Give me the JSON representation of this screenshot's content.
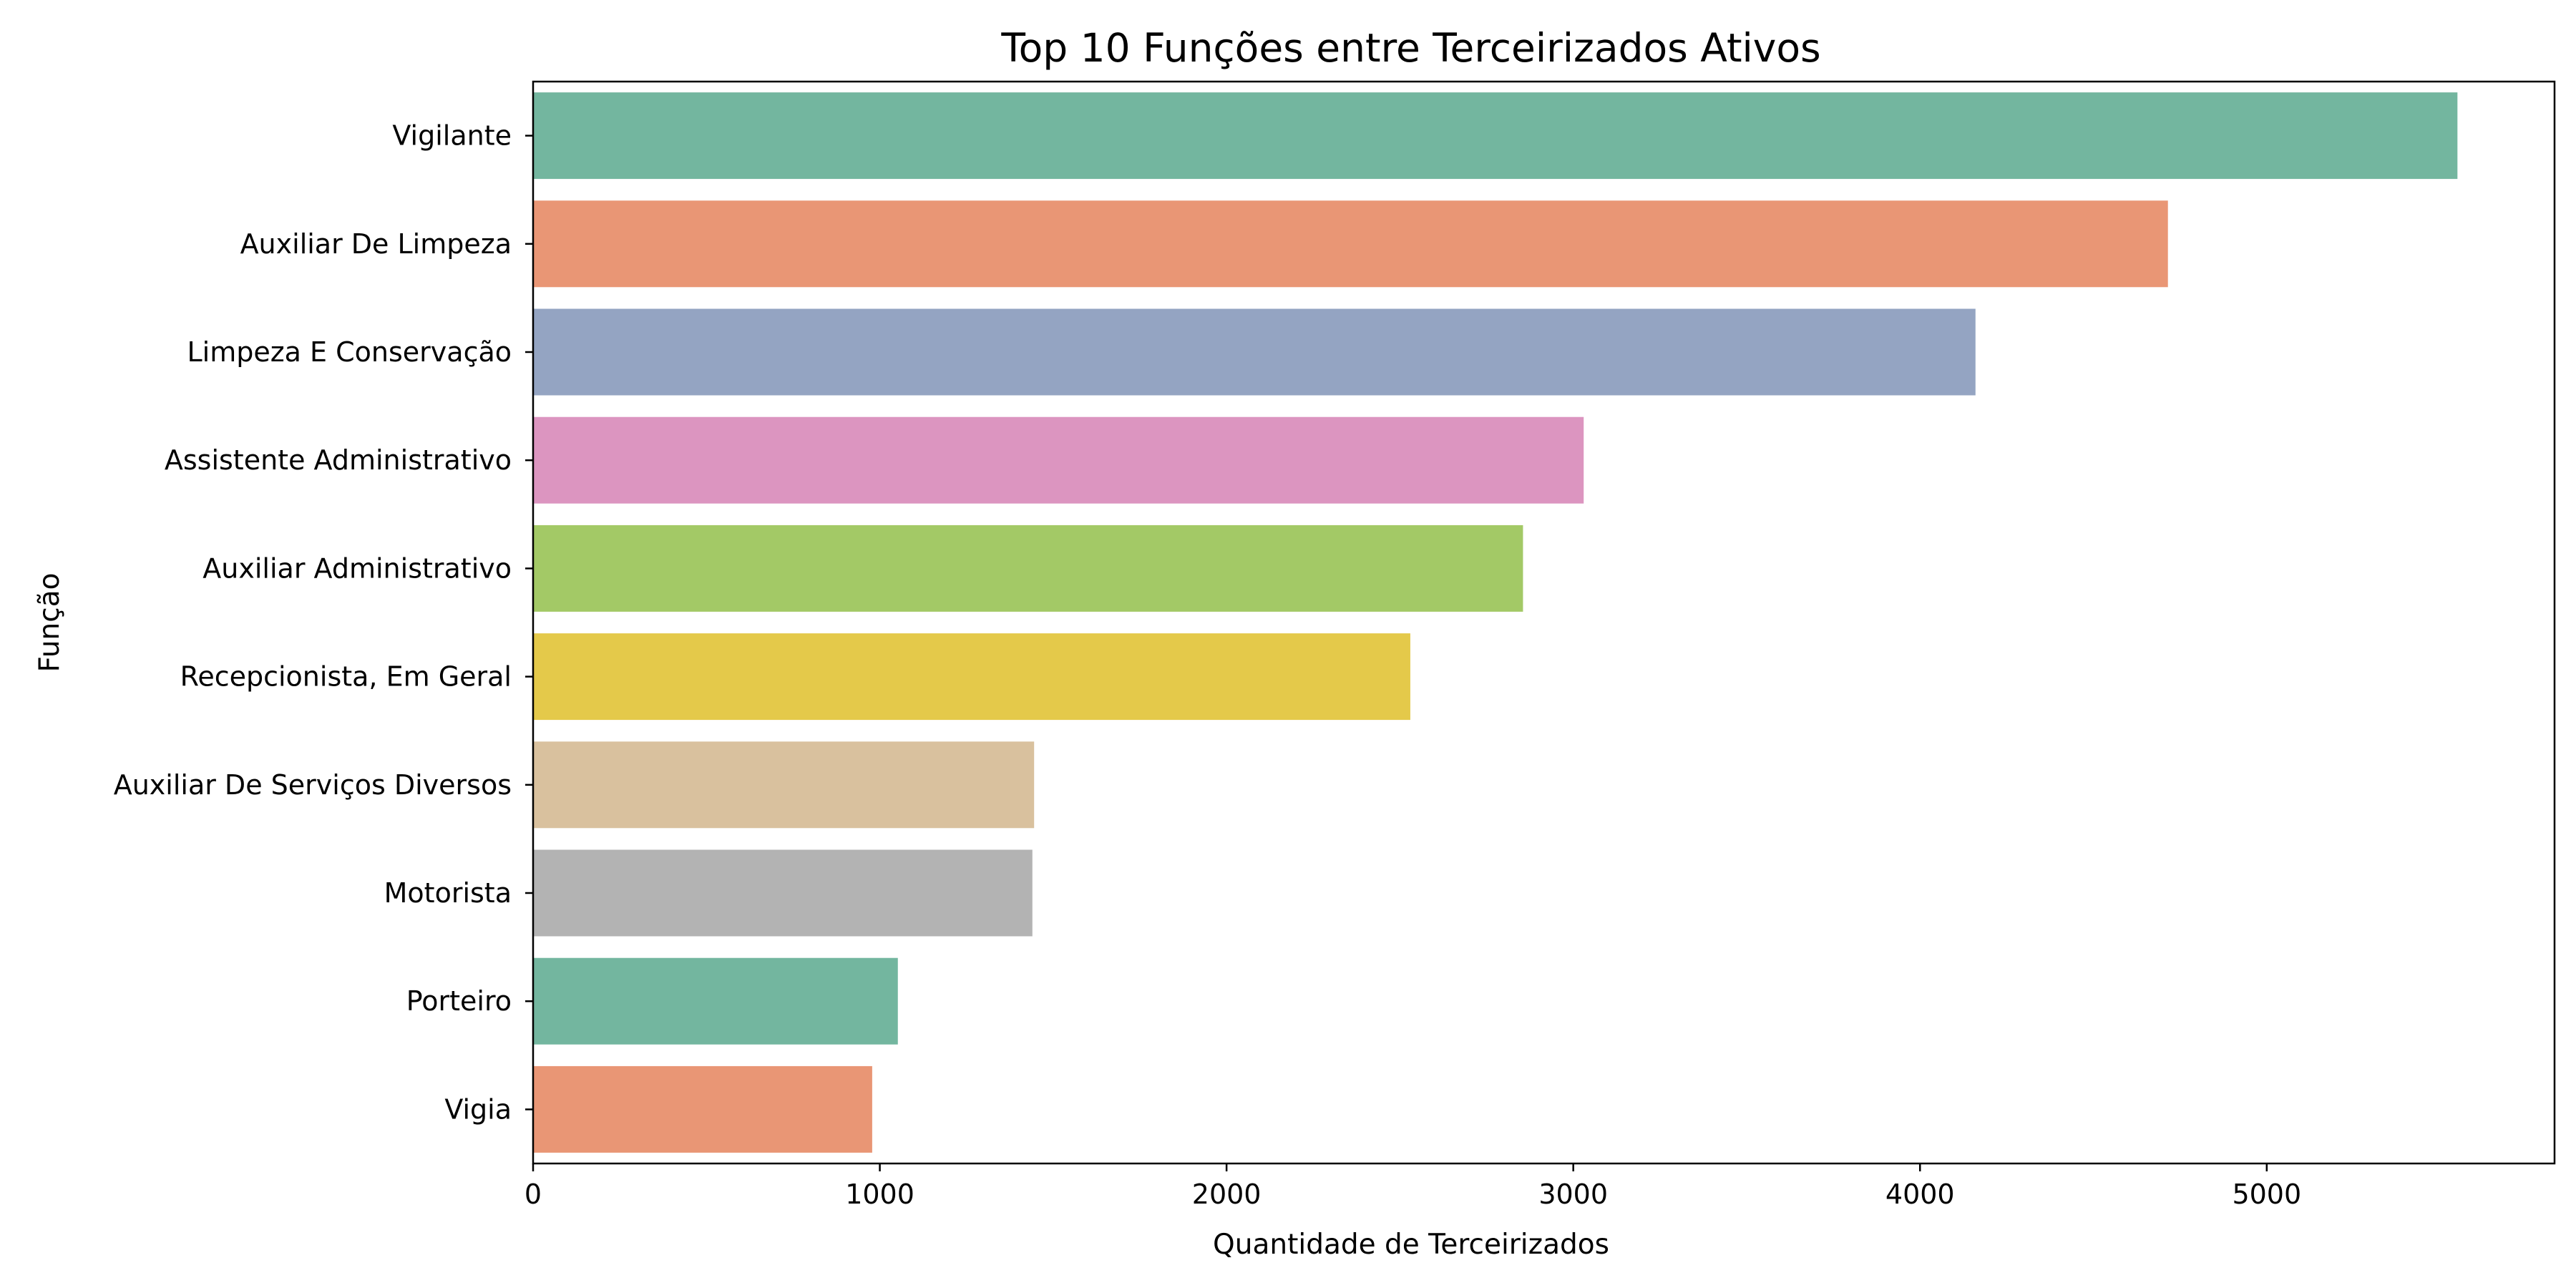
{
  "chart_data": {
    "type": "bar",
    "orientation": "horizontal",
    "title": "Top 10 Funções entre Terceirizados Ativos",
    "xlabel": "Quantidade de Terceirizados",
    "ylabel": "Função",
    "xlim": [
      0,
      5830
    ],
    "x_ticks": [
      0,
      1000,
      2000,
      3000,
      4000,
      5000
    ],
    "grid": false,
    "legend": "none",
    "categories": [
      "Vigilante",
      "Auxiliar De Limpeza",
      "Limpeza E Conservação",
      "Assistente Administrativo",
      "Auxiliar Administrativo",
      "Recepcionista, Em Geral",
      "Auxiliar De Serviços Diversos",
      "Motorista",
      "Porteiro",
      "Vigia"
    ],
    "values": [
      5550,
      4715,
      4160,
      3030,
      2855,
      2530,
      1445,
      1440,
      1052,
      978
    ],
    "colors": [
      "#73b69f",
      "#e99675",
      "#94a4c2",
      "#dc95c0",
      "#a3c966",
      "#e4c94a",
      "#d9c19e",
      "#b3b3b3",
      "#73b69f",
      "#e99675"
    ]
  }
}
